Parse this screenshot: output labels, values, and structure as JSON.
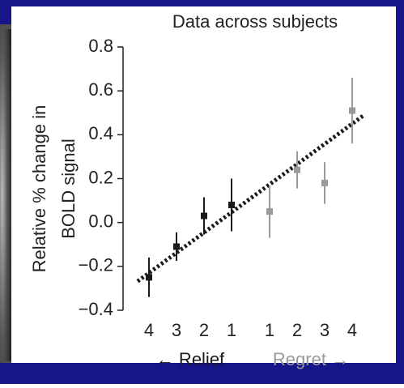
{
  "chart_data": {
    "type": "errorbar",
    "title": "Data across subjects",
    "y_label": [
      "Relative % change in",
      "BOLD signal"
    ],
    "categories": [
      "4",
      "3",
      "2",
      "1",
      "1",
      "2",
      "3",
      "4"
    ],
    "series": [
      {
        "name": "← Relief",
        "color": "#1a1a1a",
        "values": [
          -0.25,
          -0.11,
          0.03,
          0.08,
          null,
          null,
          null,
          null
        ],
        "errors": [
          0.09,
          0.065,
          0.085,
          0.12,
          null,
          null,
          null,
          null
        ]
      },
      {
        "name": "Regret →",
        "color": "#9a9a9a",
        "values": [
          null,
          null,
          null,
          null,
          0.05,
          0.24,
          0.18,
          0.51
        ],
        "errors": [
          null,
          null,
          null,
          null,
          0.12,
          0.085,
          0.095,
          0.15
        ]
      }
    ],
    "fit_line": {
      "color": "#1a1a1a",
      "values": [
        -0.23,
        0.45
      ]
    },
    "ylim": [
      -0.4,
      0.8
    ],
    "yticks": [
      {
        "value": -0.4,
        "label": "−0.4"
      },
      {
        "value": -0.2,
        "label": "−0.2"
      },
      {
        "value": 0,
        "label": "0.0"
      },
      0.2,
      0.4,
      0.6,
      0.8
    ]
  }
}
